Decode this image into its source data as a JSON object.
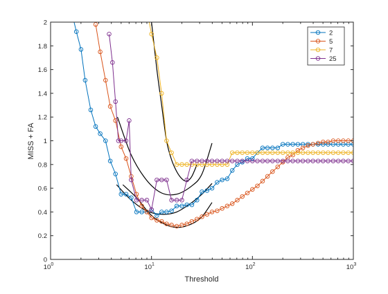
{
  "chart_data": {
    "type": "line",
    "xlabel": "Threshold",
    "ylabel": "MISS + FA",
    "xscale": "log",
    "xlim": [
      1,
      1000
    ],
    "ylim": [
      0,
      2
    ],
    "xticks": [
      {
        "value": 1,
        "base": "10",
        "exp": "0"
      },
      {
        "value": 10,
        "base": "10",
        "exp": "1"
      },
      {
        "value": 100,
        "base": "10",
        "exp": "2"
      },
      {
        "value": 1000,
        "base": "10",
        "exp": "3"
      }
    ],
    "yticks": [
      "0",
      "0.2",
      "0.4",
      "0.6",
      "0.8",
      "1",
      "1.2",
      "1.4",
      "1.6",
      "1.8",
      "2"
    ],
    "grid": false,
    "legend": "top-right",
    "series": [
      {
        "name": "2",
        "color": "#0072BD",
        "x": [
          1.5,
          1.8,
          2.0,
          2.2,
          2.5,
          2.8,
          3.1,
          3.5,
          3.9,
          4.4,
          5.0,
          5.6,
          6.3,
          7.1,
          8.0,
          9.0,
          10.0,
          11.3,
          12.6,
          14.1,
          15.8,
          17.8,
          20.0,
          22.4,
          25.1,
          28.2,
          31.6,
          35.5,
          39.8,
          44.7,
          50.1,
          56.2,
          63.1,
          70.8,
          79.4,
          89.1,
          100,
          112,
          126,
          141,
          158,
          178,
          200,
          224,
          251,
          282,
          316,
          355,
          398,
          447,
          501,
          562,
          631,
          708,
          794,
          891,
          1000
        ],
        "y": [
          2.2,
          1.92,
          1.77,
          1.51,
          1.26,
          1.12,
          1.06,
          1.0,
          0.83,
          0.72,
          0.55,
          0.55,
          0.52,
          0.4,
          0.4,
          0.4,
          0.42,
          0.37,
          0.4,
          0.4,
          0.41,
          0.45,
          0.45,
          0.46,
          0.46,
          0.5,
          0.57,
          0.58,
          0.6,
          0.65,
          0.67,
          0.68,
          0.75,
          0.8,
          0.82,
          0.85,
          0.85,
          0.9,
          0.94,
          0.94,
          0.94,
          0.94,
          0.97,
          0.97,
          0.97,
          0.97,
          0.97,
          0.97,
          0.97,
          0.97,
          0.97,
          0.97,
          0.97,
          0.97,
          0.97,
          0.97,
          0.97
        ]
      },
      {
        "name": "5",
        "color": "#D95319",
        "x": [
          2.8,
          3.1,
          3.5,
          3.9,
          4.4,
          5.0,
          5.6,
          6.3,
          7.1,
          8.0,
          9.0,
          10.0,
          11.3,
          12.6,
          14.1,
          15.8,
          17.8,
          20.0,
          22.4,
          25.1,
          28.2,
          31.6,
          35.5,
          39.8,
          44.7,
          50.1,
          56.2,
          63.1,
          70.8,
          79.4,
          89.1,
          100,
          112,
          126,
          141,
          158,
          178,
          200,
          224,
          251,
          282,
          316,
          355,
          398,
          447,
          501,
          562,
          631,
          708,
          794,
          891,
          1000
        ],
        "y": [
          1.98,
          1.75,
          1.51,
          1.29,
          1.17,
          0.95,
          0.85,
          0.7,
          0.55,
          0.45,
          0.4,
          0.35,
          0.33,
          0.32,
          0.3,
          0.29,
          0.28,
          0.29,
          0.3,
          0.32,
          0.34,
          0.36,
          0.38,
          0.4,
          0.41,
          0.43,
          0.45,
          0.47,
          0.5,
          0.53,
          0.56,
          0.59,
          0.62,
          0.66,
          0.7,
          0.74,
          0.78,
          0.82,
          0.86,
          0.88,
          0.92,
          0.94,
          0.96,
          0.97,
          0.98,
          0.99,
          0.99,
          1.0,
          1.0,
          1.0,
          1.0,
          1.0
        ]
      },
      {
        "name": "7",
        "color": "#EDB120",
        "x": [
          9.0,
          10.0,
          11.3,
          12.6,
          14.1,
          15.8,
          17.8,
          20.0,
          22.4,
          25.1,
          28.2,
          31.6,
          35.5,
          39.8,
          44.7,
          50.1,
          56.2,
          63.1,
          70.8,
          79.4,
          89.1,
          100,
          112,
          126,
          141,
          158,
          178,
          200,
          224,
          251,
          282,
          316,
          355,
          398,
          447,
          501,
          562,
          631,
          708,
          794,
          891,
          1000
        ],
        "y": [
          2.1,
          1.9,
          1.7,
          1.4,
          1.0,
          0.9,
          0.8,
          0.8,
          0.8,
          0.8,
          0.8,
          0.8,
          0.8,
          0.8,
          0.8,
          0.8,
          0.8,
          0.9,
          0.9,
          0.9,
          0.9,
          0.9,
          0.9,
          0.9,
          0.9,
          0.9,
          0.9,
          0.9,
          0.9,
          0.9,
          0.9,
          0.9,
          0.9,
          0.9,
          0.9,
          0.9,
          0.9,
          0.9,
          0.9,
          0.9,
          0.9,
          0.9
        ]
      },
      {
        "name": "25",
        "color": "#7E2F8E",
        "x": [
          3.8,
          4.1,
          4.4,
          4.7,
          5.0,
          5.6,
          6.0,
          6.3,
          7.1,
          8.0,
          9.0,
          10.0,
          11.3,
          12.6,
          14.1,
          15.8,
          17.8,
          20.0,
          22.4,
          25.1,
          28.2,
          31.6,
          35.5,
          39.8,
          44.7,
          50.1,
          56.2,
          63.1,
          70.8,
          79.4,
          89.1,
          100,
          112,
          126,
          141,
          158,
          178,
          200,
          224,
          251,
          282,
          316,
          355,
          398,
          447,
          501,
          562,
          631,
          708,
          794,
          891,
          1000
        ],
        "y": [
          1.9,
          1.66,
          1.33,
          1.0,
          1.0,
          1.0,
          1.17,
          0.67,
          0.5,
          0.5,
          0.5,
          0.42,
          0.67,
          0.67,
          0.67,
          0.5,
          0.5,
          0.5,
          0.67,
          0.83,
          0.83,
          0.83,
          0.83,
          0.83,
          0.83,
          0.83,
          0.83,
          0.83,
          0.83,
          0.83,
          0.83,
          0.83,
          0.83,
          0.83,
          0.83,
          0.83,
          0.83,
          0.83,
          0.83,
          0.83,
          0.83,
          0.83,
          0.83,
          0.83,
          0.83,
          0.83,
          0.83,
          0.83,
          0.83,
          0.83,
          0.83,
          0.83
        ]
      }
    ],
    "fits": [
      {
        "color": "#000000",
        "x": [
          4.5,
          6.3,
          8.9,
          12.6,
          17.8,
          25.1,
          31.6,
          39.8
        ],
        "y": [
          0.63,
          0.5,
          0.41,
          0.38,
          0.4,
          0.48,
          0.55,
          0.64
        ]
      },
      {
        "color": "#000000",
        "x": [
          5.2,
          7.1,
          10.0,
          14.1,
          18.8,
          25.1,
          31.6,
          39.8
        ],
        "y": [
          0.63,
          0.52,
          0.37,
          0.29,
          0.27,
          0.3,
          0.36,
          0.48
        ]
      },
      {
        "color": "#000000",
        "x": [
          10.0,
          11.3,
          12.6,
          14.1,
          15.8,
          17.8,
          20.0,
          22.4,
          25.1,
          28.2
        ],
        "y": [
          2.0,
          1.6,
          1.3,
          1.0,
          0.84,
          0.74,
          0.68,
          0.66,
          0.7,
          0.8
        ]
      },
      {
        "color": "#000000",
        "x": [
          4.6,
          6.3,
          8.9,
          12.6,
          17.8,
          25.1,
          31.6,
          39.8
        ],
        "y": [
          1.2,
          0.88,
          0.67,
          0.56,
          0.55,
          0.62,
          0.72,
          0.98
        ]
      }
    ]
  }
}
